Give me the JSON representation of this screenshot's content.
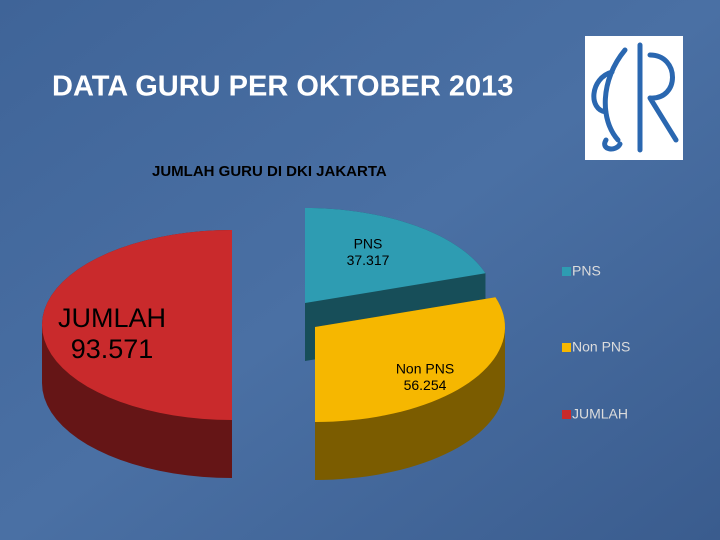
{
  "slide_title": "DATA GURU PER OKTOBER 2013",
  "chart_data": {
    "type": "pie3d",
    "title": "JUMLAH GURU DI DKI JAKARTA",
    "categories": [
      "PNS",
      "Non PNS",
      "JUMLAH"
    ],
    "values": [
      37317,
      56254,
      93571
    ],
    "value_labels": [
      "37.317",
      "56.254",
      "93.571"
    ],
    "colors": [
      "#2e9cb2",
      "#f6b700",
      "#c92a2c"
    ],
    "legend": "right"
  }
}
